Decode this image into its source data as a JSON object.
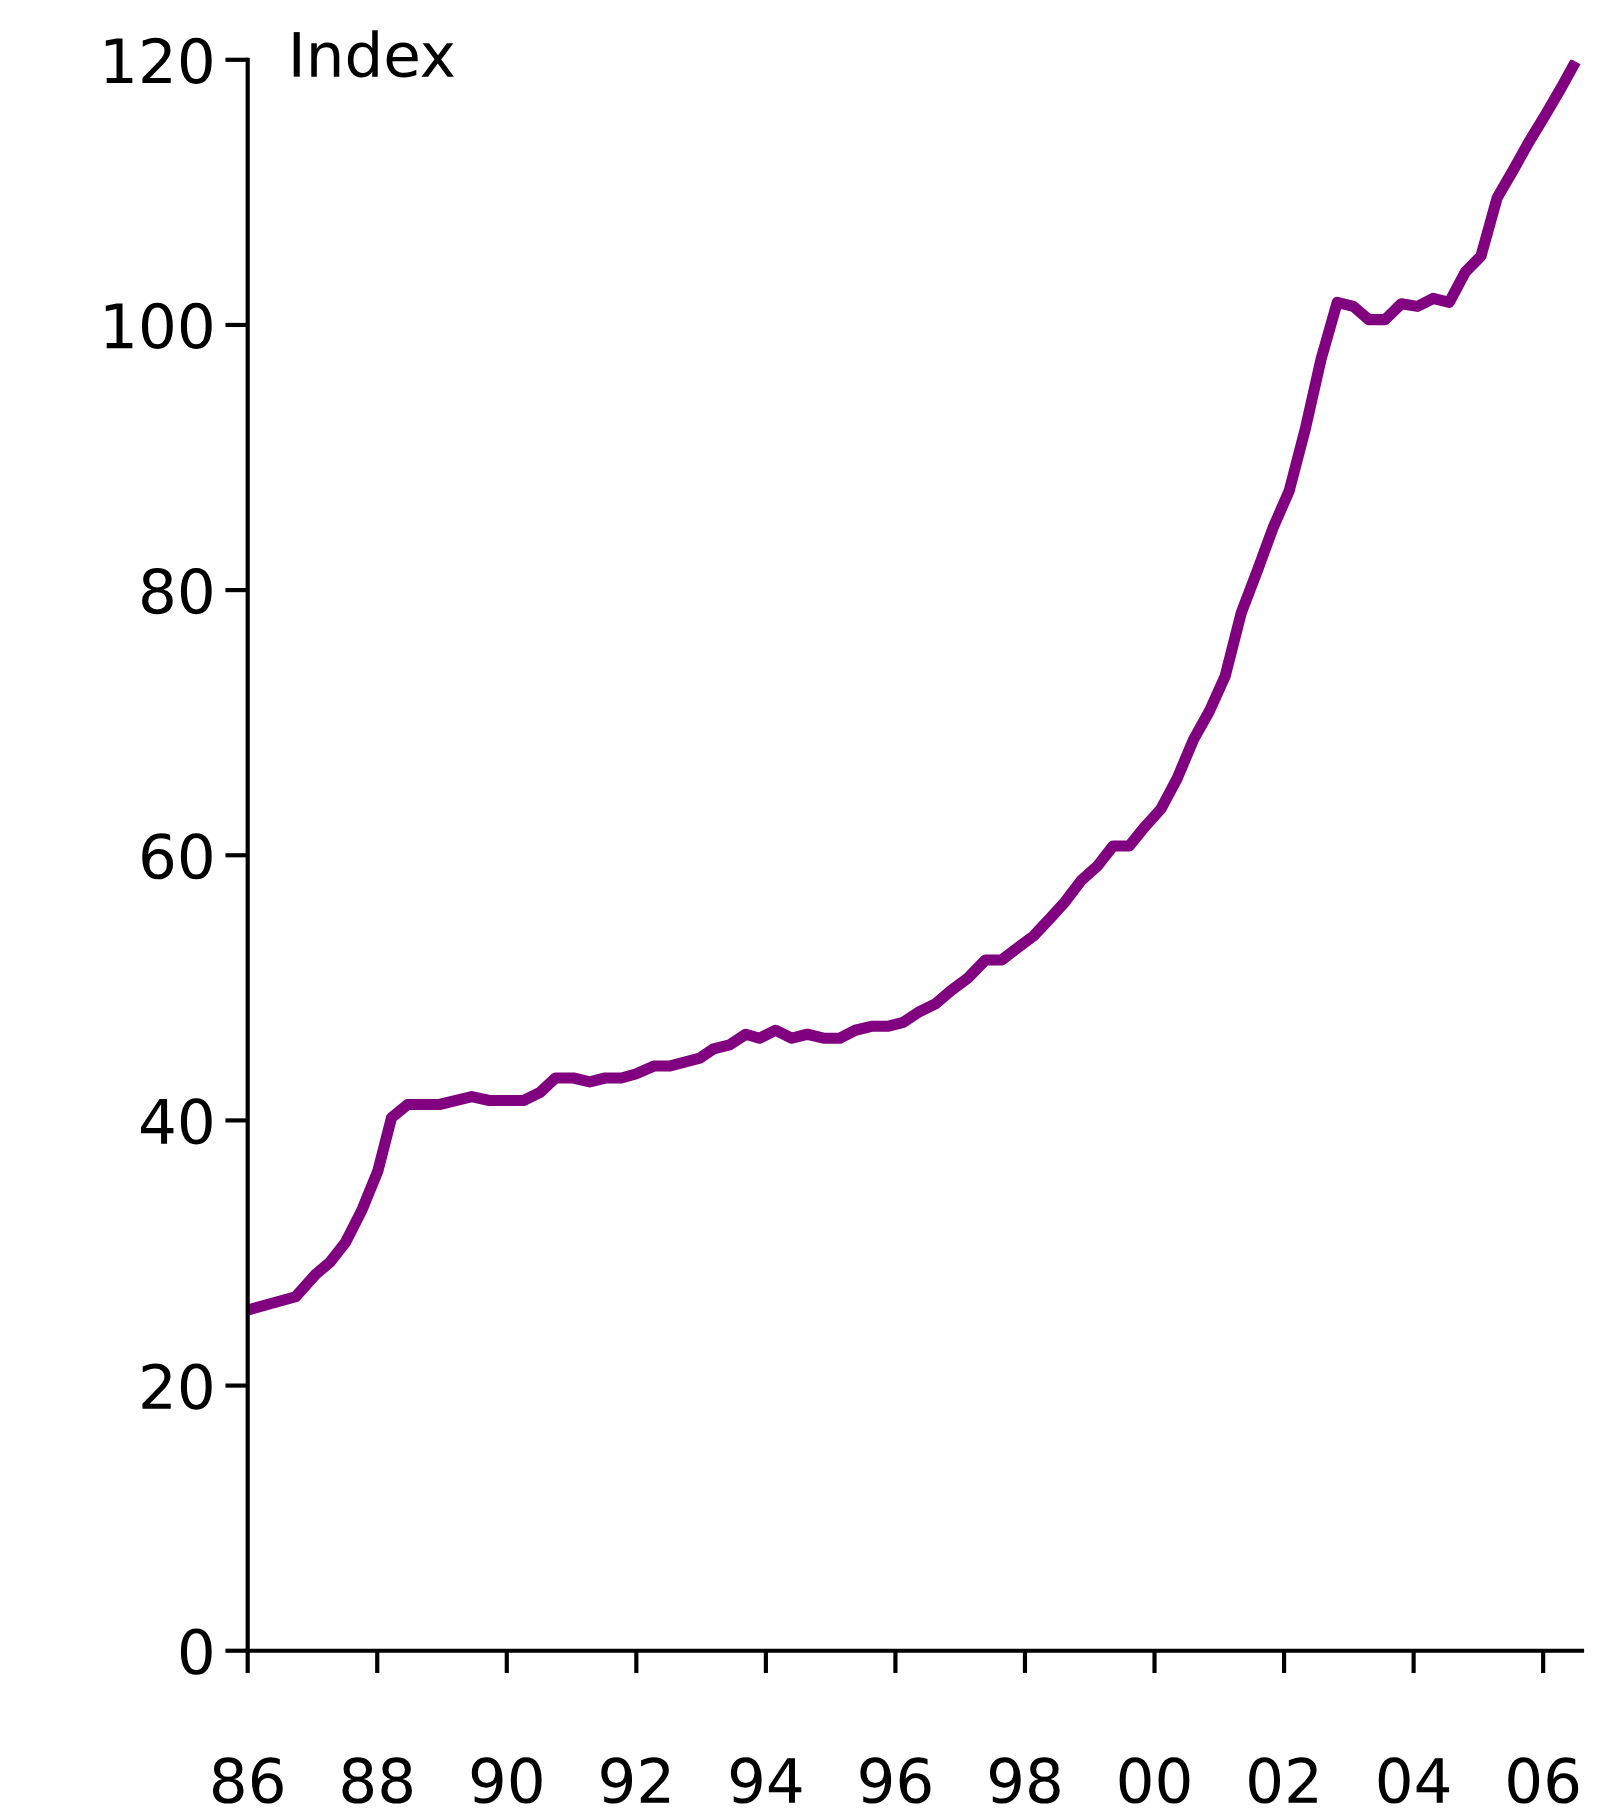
{
  "chart_data": {
    "type": "line",
    "ylabel": "Index",
    "x": [
      1986.0,
      1986.74,
      1987.05,
      1987.27,
      1987.51,
      1987.76,
      1988.01,
      1988.22,
      1988.47,
      1988.96,
      1989.46,
      1989.73,
      1990.26,
      1990.51,
      1990.75,
      1991.03,
      1991.28,
      1991.52,
      1991.77,
      1991.99,
      1992.27,
      1992.51,
      1992.98,
      1993.19,
      1993.44,
      1993.69,
      1993.9,
      1994.15,
      1994.4,
      1994.64,
      1994.89,
      1995.14,
      1995.38,
      1995.63,
      1995.88,
      1996.12,
      1996.37,
      1996.62,
      1996.86,
      1997.11,
      1997.39,
      1997.64,
      1997.88,
      1998.13,
      1998.38,
      1998.62,
      1998.87,
      1999.12,
      1999.36,
      1999.61,
      1999.86,
      2000.1,
      2000.35,
      2000.6,
      2000.85,
      2001.09,
      2001.34,
      2001.59,
      2001.83,
      2002.08,
      2002.33,
      2002.57,
      2002.82,
      2003.07,
      2003.31,
      2003.56,
      2003.81,
      2004.06,
      2004.3,
      2004.55,
      2004.8,
      2005.04,
      2005.29,
      2005.54,
      2005.78,
      2006.03,
      2006.28,
      2006.46
    ],
    "series": [
      {
        "color": "#800080",
        "values": [
          25.7,
          26.7,
          28.4,
          29.3,
          30.8,
          33.2,
          36.2,
          40.2,
          41.2,
          41.2,
          41.8,
          41.5,
          41.5,
          42.1,
          43.2,
          43.2,
          42.9,
          43.2,
          43.2,
          43.5,
          44.1,
          44.1,
          44.7,
          45.4,
          45.7,
          46.5,
          46.2,
          46.8,
          46.2,
          46.5,
          46.2,
          46.2,
          46.8,
          47.1,
          47.1,
          47.4,
          48.2,
          48.8,
          49.8,
          50.7,
          52.1,
          52.1,
          53.0,
          53.9,
          55.2,
          56.5,
          58.1,
          59.2,
          60.7,
          60.7,
          62.2,
          63.5,
          65.8,
          68.7,
          70.9,
          73.5,
          78.3,
          81.5,
          84.7,
          87.5,
          92.2,
          97.4,
          101.7,
          101.4,
          100.4,
          100.4,
          101.6,
          101.4,
          102.0,
          101.7,
          104.0,
          105.2,
          109.6,
          111.7,
          113.8,
          115.8,
          117.9,
          119.5
        ]
      }
    ],
    "xlim": [
      1986,
      2006.6
    ],
    "xticks": [
      {
        "value": 1986,
        "label": "86"
      },
      {
        "value": 1988,
        "label": "88"
      },
      {
        "value": 1990,
        "label": "90"
      },
      {
        "value": 1992,
        "label": "92"
      },
      {
        "value": 1994,
        "label": "94"
      },
      {
        "value": 1996,
        "label": "96"
      },
      {
        "value": 1998,
        "label": "98"
      },
      {
        "value": 2000,
        "label": "00"
      },
      {
        "value": 2002,
        "label": "02"
      },
      {
        "value": 2004,
        "label": "04"
      },
      {
        "value": 2006,
        "label": "06"
      }
    ],
    "ylim": [
      0,
      120
    ],
    "yticks": [
      0,
      20,
      40,
      60,
      80,
      100,
      120
    ],
    "grid": false,
    "legend": false,
    "marker": "none",
    "line_style": "solid"
  }
}
